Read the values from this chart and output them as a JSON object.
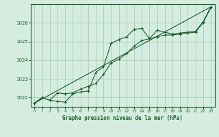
{
  "title": "Graphe pression niveau de la mer (hPa)",
  "background_color": "#d4ede0",
  "grid_color": "#a8ccb8",
  "line_color": "#1a5c28",
  "marker_color": "#1a5c28",
  "xlim": [
    -0.5,
    23.5
  ],
  "ylim": [
    1021.5,
    1027.0
  ],
  "yticks": [
    1022,
    1023,
    1024,
    1025,
    1026
  ],
  "xticks": [
    0,
    1,
    2,
    3,
    4,
    5,
    6,
    7,
    8,
    9,
    10,
    11,
    12,
    13,
    14,
    15,
    16,
    17,
    18,
    19,
    20,
    21,
    22,
    23
  ],
  "series1_x": [
    0,
    1,
    2,
    3,
    4,
    5,
    6,
    7,
    8,
    9,
    10,
    11,
    12,
    13,
    14,
    15,
    16,
    17,
    18,
    19,
    20,
    21,
    22,
    23
  ],
  "series1_y": [
    1021.7,
    1022.0,
    1021.85,
    1021.8,
    1021.75,
    1022.2,
    1022.3,
    1022.35,
    1023.35,
    1023.65,
    1024.9,
    1025.1,
    1025.25,
    1025.65,
    1025.7,
    1025.15,
    1025.6,
    1025.5,
    1025.4,
    1025.45,
    1025.5,
    1025.55,
    1026.05,
    1026.85
  ],
  "series2_x": [
    0,
    1,
    2,
    3,
    4,
    5,
    6,
    7,
    8,
    9,
    10,
    11,
    12,
    13,
    14,
    15,
    16,
    17,
    18,
    19,
    20,
    21,
    22,
    23
  ],
  "series2_y": [
    1021.7,
    1022.0,
    1021.85,
    1022.25,
    1022.2,
    1022.25,
    1022.45,
    1022.6,
    1022.75,
    1023.25,
    1023.85,
    1024.05,
    1024.35,
    1024.75,
    1025.05,
    1025.15,
    1025.25,
    1025.35,
    1025.35,
    1025.4,
    1025.45,
    1025.5,
    1026.0,
    1026.8
  ],
  "trend_x": [
    0,
    23
  ],
  "trend_y": [
    1021.7,
    1026.85
  ]
}
